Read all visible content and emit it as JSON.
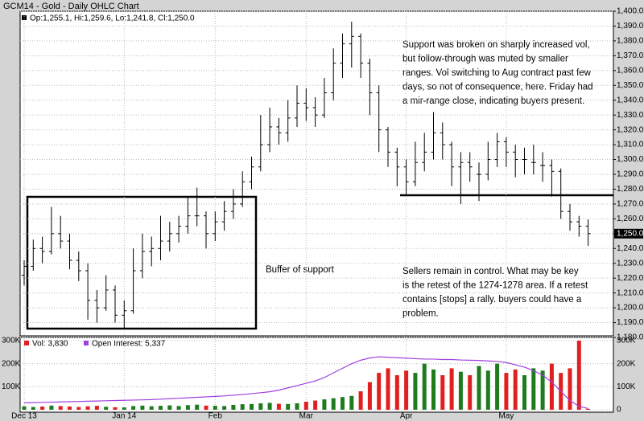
{
  "chart_data": {
    "type": "ohlc",
    "title": "GCM14 - Gold - Daily OHLC Chart",
    "header": "Op:1,255.1, Hi:1,259.6, Lo:1,241.8, Cl:1,250.0",
    "last_label": "1,250.0",
    "ohlc": [
      [
        1222,
        1232,
        1215,
        1228
      ],
      [
        1228,
        1246,
        1225,
        1240
      ],
      [
        1240,
        1248,
        1230,
        1238
      ],
      [
        1238,
        1268,
        1236,
        1250
      ],
      [
        1250,
        1262,
        1240,
        1245
      ],
      [
        1245,
        1250,
        1226,
        1232
      ],
      [
        1232,
        1238,
        1218,
        1225
      ],
      [
        1225,
        1230,
        1192,
        1205
      ],
      [
        1205,
        1212,
        1190,
        1200
      ],
      [
        1200,
        1222,
        1198,
        1212
      ],
      [
        1212,
        1215,
        1190,
        1195
      ],
      [
        1195,
        1205,
        1186,
        1198
      ],
      [
        1198,
        1240,
        1196,
        1225
      ],
      [
        1225,
        1250,
        1220,
        1238
      ],
      [
        1238,
        1248,
        1228,
        1240
      ],
      [
        1240,
        1262,
        1232,
        1245
      ],
      [
        1245,
        1258,
        1238,
        1250
      ],
      [
        1250,
        1262,
        1244,
        1255
      ],
      [
        1255,
        1275,
        1250,
        1262
      ],
      [
        1262,
        1281,
        1255,
        1262
      ],
      [
        1262,
        1265,
        1240,
        1250
      ],
      [
        1250,
        1265,
        1245,
        1258
      ],
      [
        1258,
        1272,
        1252,
        1265
      ],
      [
        1265,
        1280,
        1260,
        1270
      ],
      [
        1270,
        1292,
        1268,
        1285
      ],
      [
        1285,
        1302,
        1280,
        1295
      ],
      [
        1295,
        1330,
        1292,
        1310
      ],
      [
        1310,
        1335,
        1305,
        1322
      ],
      [
        1322,
        1328,
        1310,
        1318
      ],
      [
        1318,
        1340,
        1312,
        1328
      ],
      [
        1328,
        1350,
        1322,
        1338
      ],
      [
        1338,
        1348,
        1326,
        1335
      ],
      [
        1335,
        1342,
        1322,
        1330
      ],
      [
        1330,
        1355,
        1328,
        1345
      ],
      [
        1345,
        1375,
        1340,
        1365
      ],
      [
        1365,
        1385,
        1355,
        1378
      ],
      [
        1378,
        1393,
        1362,
        1383
      ],
      [
        1383,
        1385,
        1355,
        1365
      ],
      [
        1365,
        1368,
        1330,
        1345
      ],
      [
        1345,
        1350,
        1305,
        1320
      ],
      [
        1320,
        1322,
        1295,
        1305
      ],
      [
        1305,
        1308,
        1282,
        1295
      ],
      [
        1295,
        1300,
        1276,
        1285
      ],
      [
        1285,
        1312,
        1282,
        1298
      ],
      [
        1298,
        1318,
        1292,
        1305
      ],
      [
        1305,
        1332,
        1300,
        1318
      ],
      [
        1318,
        1325,
        1300,
        1310
      ],
      [
        1310,
        1312,
        1282,
        1295
      ],
      [
        1295,
        1305,
        1270,
        1298
      ],
      [
        1298,
        1305,
        1285,
        1295
      ],
      [
        1290,
        1298,
        1272,
        1290
      ],
      [
        1290,
        1312,
        1286,
        1300
      ],
      [
        1300,
        1318,
        1295,
        1312
      ],
      [
        1312,
        1315,
        1295,
        1305
      ],
      [
        1305,
        1310,
        1288,
        1300
      ],
      [
        1300,
        1308,
        1290,
        1300
      ],
      [
        1298,
        1310,
        1290,
        1298
      ],
      [
        1296,
        1305,
        1285,
        1296
      ],
      [
        1296,
        1300,
        1275,
        1292
      ],
      [
        1292,
        1294,
        1260,
        1265
      ],
      [
        1265,
        1270,
        1252,
        1258
      ],
      [
        1258,
        1262,
        1248,
        1255
      ],
      [
        1255.1,
        1259.6,
        1241.8,
        1250.0
      ]
    ],
    "volume": {
      "name": "Vol: 3,830",
      "up_color": "#1e7b1e",
      "down_color": "#e02020",
      "values": [
        15000,
        12000,
        14000,
        18000,
        16000,
        14000,
        12000,
        15000,
        17000,
        13000,
        11000,
        10000,
        16000,
        18000,
        15000,
        17000,
        19000,
        16000,
        20000,
        22000,
        18000,
        17000,
        16000,
        21000,
        24000,
        25000,
        28000,
        30000,
        26000,
        25000,
        28000,
        35000,
        40000,
        45000,
        50000,
        55000,
        60000,
        80000,
        120000,
        160000,
        180000,
        150000,
        170000,
        160000,
        200000,
        175000,
        150000,
        180000,
        165000,
        150000,
        190000,
        170000,
        200000,
        160000,
        175000,
        150000,
        180000,
        170000,
        200000,
        160000,
        180000,
        300000,
        3830
      ]
    },
    "open_interest": {
      "name": "Open Interest: 5,337",
      "color": "#a040e0",
      "values": [
        30000,
        31000,
        32000,
        33000,
        34000,
        35000,
        36000,
        37000,
        38000,
        39000,
        40000,
        41000,
        42000,
        43000,
        44000,
        46000,
        48000,
        50000,
        52000,
        54000,
        56000,
        58000,
        60000,
        63000,
        66000,
        70000,
        74000,
        78000,
        85000,
        95000,
        105000,
        115000,
        125000,
        140000,
        160000,
        180000,
        200000,
        215000,
        225000,
        230000,
        228000,
        226000,
        224000,
        222000,
        220000,
        220000,
        218000,
        218000,
        216000,
        215000,
        214000,
        212000,
        210000,
        205000,
        195000,
        185000,
        170000,
        150000,
        120000,
        80000,
        40000,
        15000,
        5337
      ]
    },
    "ylim": [
      1180,
      1400
    ],
    "yticks": [
      {
        "value": 1180,
        "label": "1,180.0"
      },
      {
        "value": 1190,
        "label": "1,190.0"
      },
      {
        "value": 1200,
        "label": "1,200.0"
      },
      {
        "value": 1210,
        "label": "1,210.0"
      },
      {
        "value": 1220,
        "label": "1,220.0"
      },
      {
        "value": 1230,
        "label": "1,230.0"
      },
      {
        "value": 1240,
        "label": "1,240.0"
      },
      {
        "value": 1250,
        "label": "1,250.0"
      },
      {
        "value": 1260,
        "label": "1,260.0"
      },
      {
        "value": 1270,
        "label": "1,270.0"
      },
      {
        "value": 1280,
        "label": "1,280.0"
      },
      {
        "value": 1290,
        "label": "1,290.0"
      },
      {
        "value": 1300,
        "label": "1,300.0"
      },
      {
        "value": 1310,
        "label": "1,310.0"
      },
      {
        "value": 1320,
        "label": "1,320.0"
      },
      {
        "value": 1330,
        "label": "1,330.0"
      },
      {
        "value": 1340,
        "label": "1,340.0"
      },
      {
        "value": 1350,
        "label": "1,350.0"
      },
      {
        "value": 1360,
        "label": "1,360.0"
      },
      {
        "value": 1370,
        "label": "1,370.0"
      },
      {
        "value": 1380,
        "label": "1,380.0"
      },
      {
        "value": 1390,
        "label": "1,390.0"
      },
      {
        "value": 1400,
        "label": "1,400.0"
      }
    ],
    "vlim": [
      0,
      300000
    ],
    "vticks": [
      0,
      {
        "value": 100000,
        "label": "100K"
      },
      {
        "value": 200000,
        "label": "200K"
      },
      {
        "value": 300000,
        "label": "300K"
      }
    ],
    "xticks": [
      {
        "value": 0,
        "label": "Dec 13"
      },
      {
        "value": 11,
        "label": "Jan 14"
      },
      {
        "value": 21,
        "label": "Feb"
      },
      {
        "value": 31,
        "label": "Mar"
      },
      {
        "value": 42,
        "label": "Apr"
      },
      {
        "value": 53,
        "label": "May"
      }
    ],
    "grid": true,
    "annotations": [
      [
        "Support was broken on sharply increased vol,",
        "but follow-through was muted by smaller",
        "ranges.  Vol switching to Aug contract past few",
        "days, so not of consequence, here.  Friday had",
        "a mir-range close, indicating buyers present."
      ],
      [
        "Sellers remain in control.  What may be key",
        "is the retest of the 1274-1278 area.  If a retest",
        "contains [stops] a rally. buyers could have a",
        "problem."
      ],
      [
        "Buffer of support"
      ]
    ]
  }
}
